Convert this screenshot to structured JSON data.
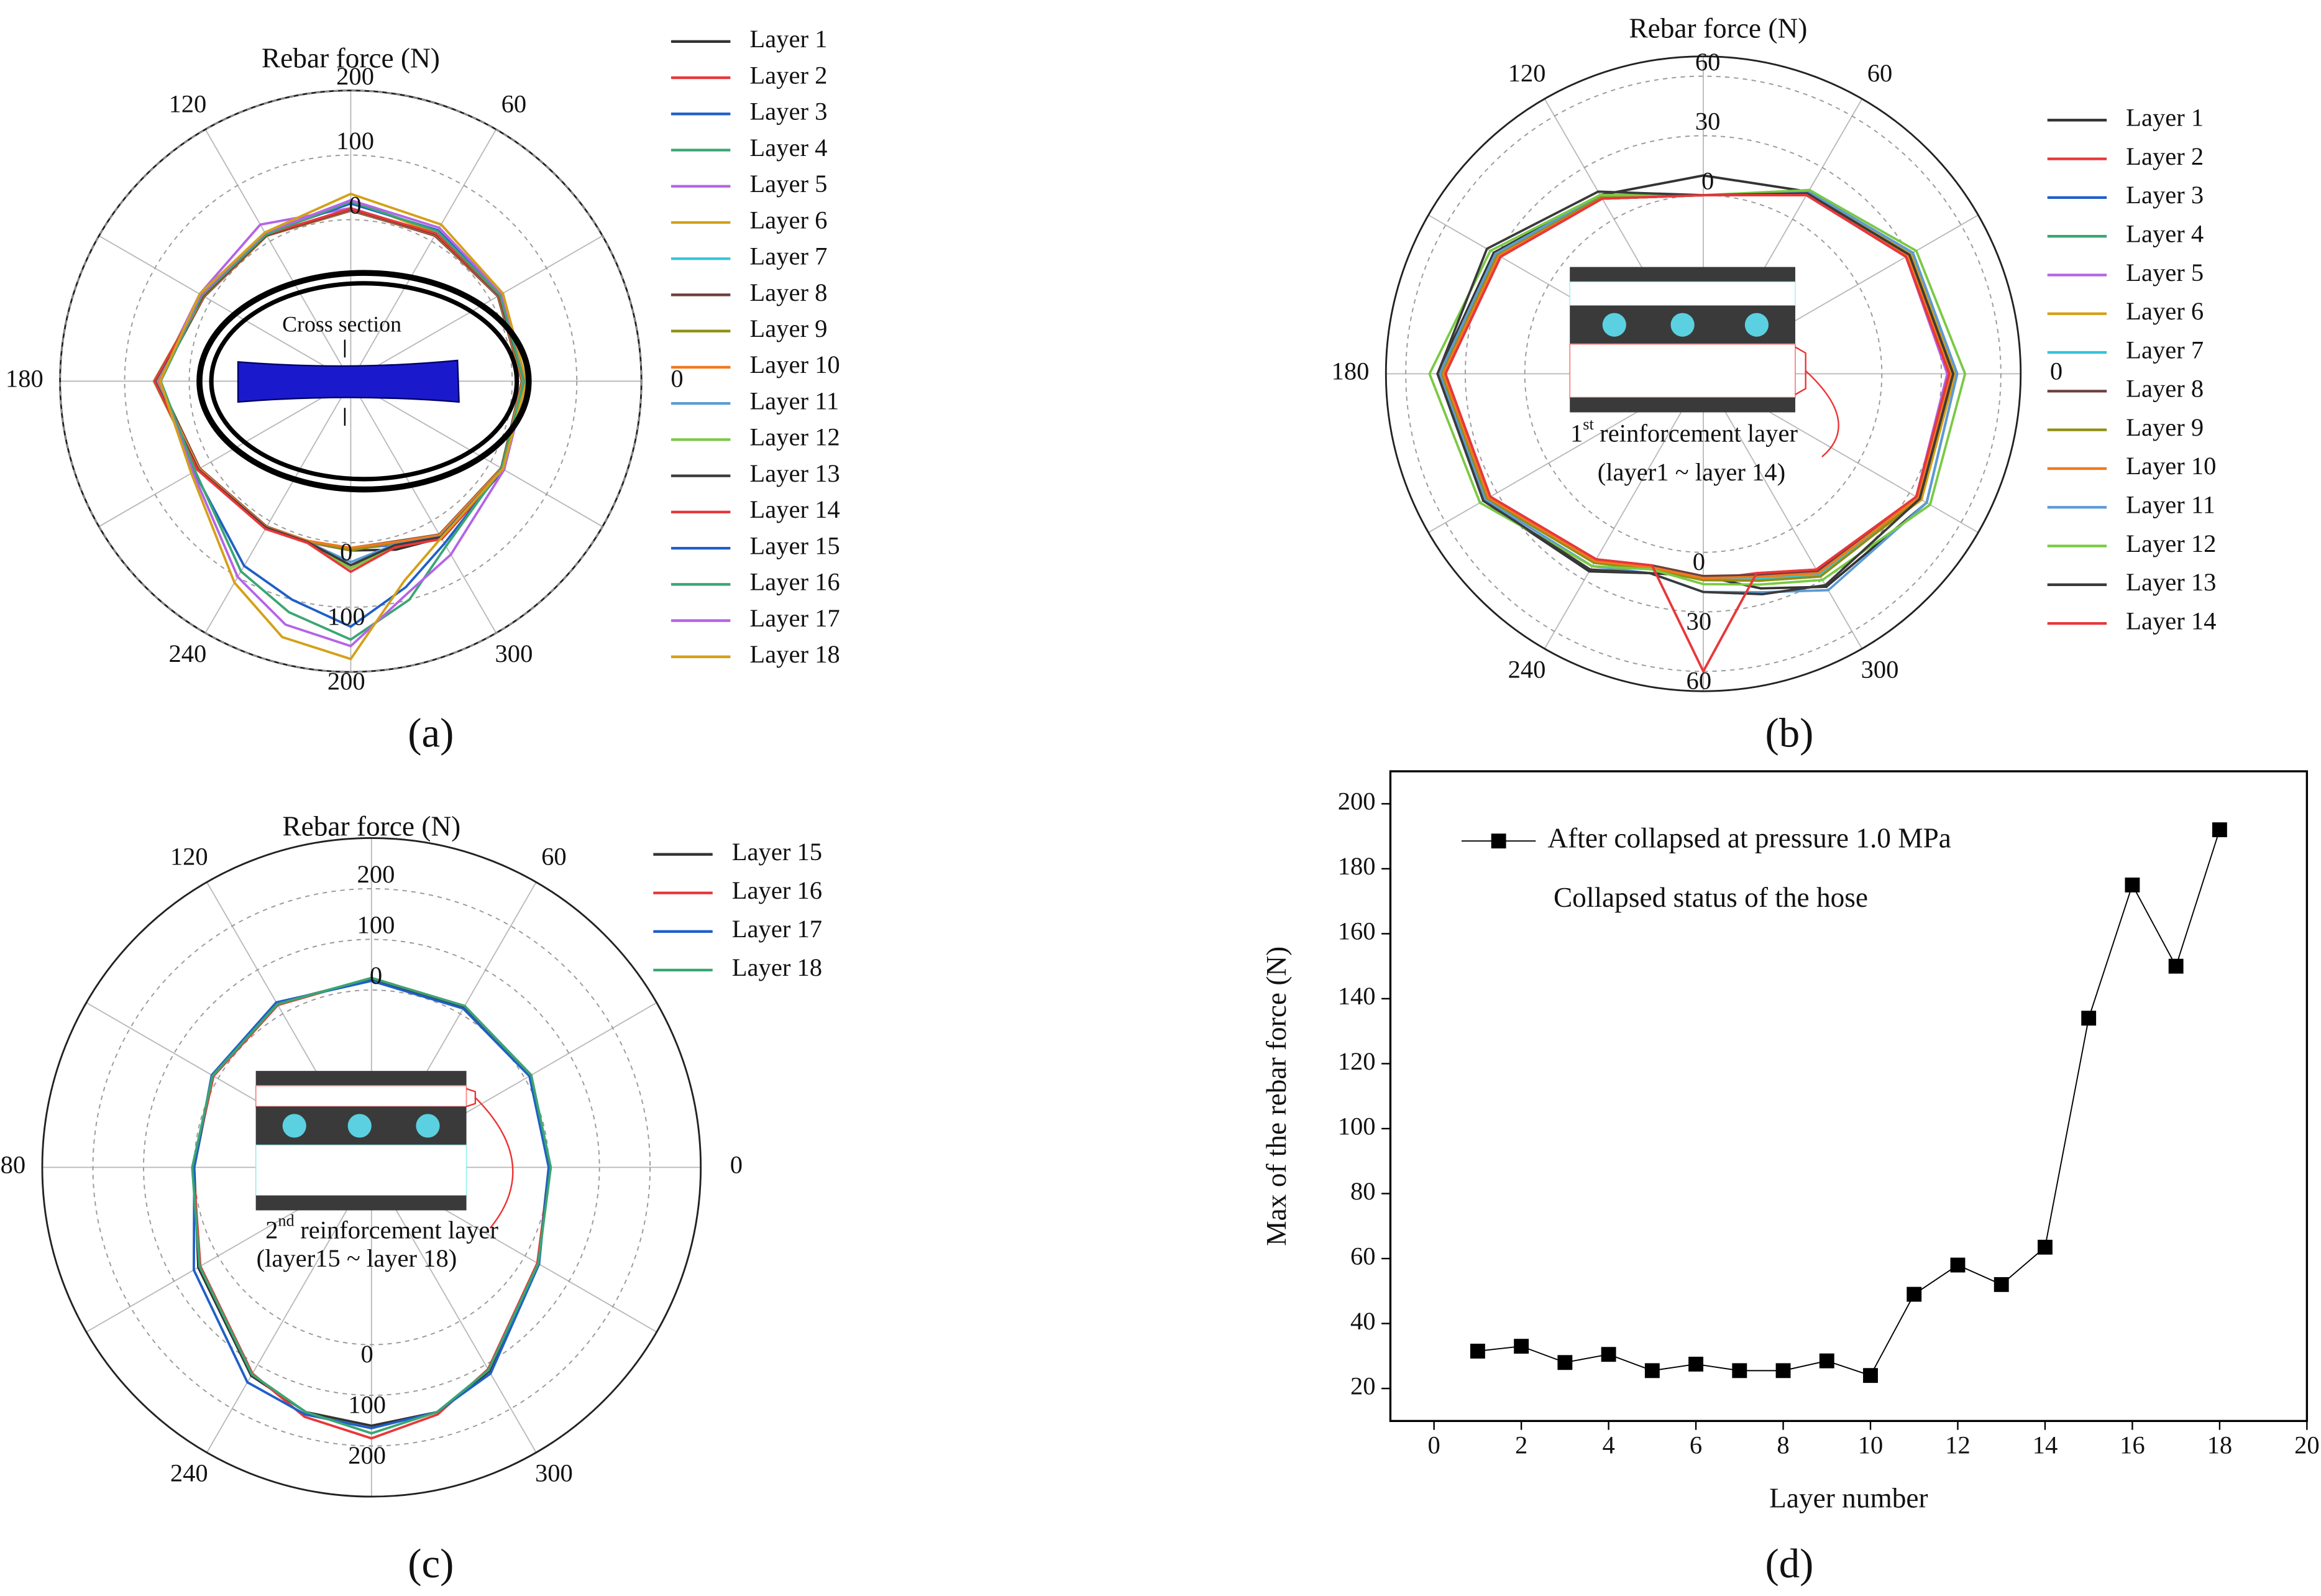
{
  "chart_data": [
    {
      "type": "polar",
      "title": "Rebar force (N)",
      "panel_label": "(a)",
      "annotation": "Cross section",
      "rlim": [
        -250,
        200
      ],
      "rticks": [
        0,
        100,
        200
      ],
      "thetaticks": [
        0,
        60,
        120,
        180,
        240,
        300
      ],
      "theta": [
        0,
        30,
        60,
        90,
        120,
        150,
        180,
        210,
        240,
        255,
        270,
        285,
        300,
        330
      ],
      "series": [
        {
          "name": "Layer 1",
          "color": "#333333",
          "values": [
            18,
            14,
            12,
            14,
            10,
            12,
            50,
            22,
            12,
            8,
            12,
            20,
            30,
            22
          ]
        },
        {
          "name": "Layer 2",
          "color": "#e8373a",
          "values": [
            16,
            15,
            10,
            15,
            12,
            14,
            48,
            20,
            10,
            6,
            40,
            10,
            25,
            20
          ]
        },
        {
          "name": "Layer 3",
          "color": "#1f5fc8",
          "values": [
            20,
            16,
            12,
            16,
            11,
            13,
            52,
            23,
            12,
            7,
            10,
            12,
            28,
            21
          ]
        },
        {
          "name": "Layer 4",
          "color": "#3aa672",
          "values": [
            15,
            13,
            11,
            14,
            10,
            12,
            47,
            21,
            11,
            6,
            9,
            8,
            24,
            19
          ]
        },
        {
          "name": "Layer 5",
          "color": "#b464e6",
          "values": [
            17,
            15,
            13,
            18,
            30,
            20,
            50,
            24,
            13,
            8,
            11,
            10,
            26,
            20
          ]
        },
        {
          "name": "Layer 6",
          "color": "#d4a017",
          "values": [
            19,
            16,
            14,
            30,
            12,
            14,
            52,
            22,
            12,
            7,
            10,
            9,
            27,
            22
          ]
        },
        {
          "name": "Layer 7",
          "color": "#36c5d9",
          "values": [
            16,
            14,
            12,
            15,
            11,
            13,
            49,
            21,
            11,
            6,
            9,
            8,
            25,
            20
          ]
        },
        {
          "name": "Layer 8",
          "color": "#6b3f3f",
          "values": [
            15,
            13,
            11,
            14,
            10,
            12,
            48,
            20,
            10,
            6,
            8,
            7,
            24,
            19
          ]
        },
        {
          "name": "Layer 9",
          "color": "#8f8f14",
          "values": [
            17,
            15,
            12,
            16,
            11,
            14,
            51,
            22,
            12,
            7,
            12,
            9,
            26,
            21
          ]
        },
        {
          "name": "Layer 10",
          "color": "#f07a1e",
          "values": [
            16,
            14,
            12,
            15,
            10,
            13,
            50,
            21,
            11,
            6,
            8,
            8,
            25,
            20
          ]
        },
        {
          "name": "Layer 11",
          "color": "#5b9bd5",
          "values": [
            18,
            15,
            13,
            16,
            12,
            14,
            52,
            23,
            12,
            8,
            30,
            12,
            28,
            22
          ]
        },
        {
          "name": "Layer 12",
          "color": "#7ac943",
          "values": [
            19,
            16,
            13,
            17,
            12,
            15,
            55,
            24,
            13,
            8,
            40,
            14,
            30,
            23
          ]
        },
        {
          "name": "Layer 13",
          "color": "#3a3a3a",
          "values": [
            18,
            15,
            13,
            16,
            11,
            14,
            53,
            23,
            12,
            8,
            35,
            13,
            29,
            22
          ]
        },
        {
          "name": "Layer 14",
          "color": "#e8373a",
          "values": [
            20,
            16,
            14,
            17,
            12,
            15,
            54,
            24,
            14,
            9,
            45,
            16,
            32,
            24
          ]
        },
        {
          "name": "Layer 15",
          "color": "#1f5fc8",
          "values": [
            20,
            18,
            20,
            25,
            14,
            18,
            45,
            30,
            80,
            100,
            130,
            80,
            40,
            22
          ]
        },
        {
          "name": "Layer 16",
          "color": "#3aa672",
          "values": [
            18,
            17,
            18,
            28,
            12,
            16,
            44,
            28,
            90,
            120,
            150,
            100,
            45,
            20
          ]
        },
        {
          "name": "Layer 17",
          "color": "#b464e6",
          "values": [
            22,
            20,
            24,
            30,
            15,
            18,
            46,
            32,
            100,
            140,
            160,
            90,
            60,
            24
          ]
        },
        {
          "name": "Layer 18",
          "color": "#d4a017",
          "values": [
            22,
            22,
            30,
            40,
            16,
            20,
            45,
            35,
            110,
            160,
            180,
            70,
            30,
            22
          ]
        }
      ]
    },
    {
      "type": "polar",
      "title": "Rebar force (N)",
      "panel_label": "(b)",
      "inset_label": {
        "ordinal": "1",
        "suffix": "st",
        "text": "reinforcement layer",
        "range": "(layer1 ~ layer 14)"
      },
      "rlim": [
        -90,
        70
      ],
      "rticks": [
        0,
        30,
        60
      ],
      "thetaticks": [
        0,
        60,
        120,
        180,
        240,
        300
      ],
      "theta": [
        0,
        30,
        60,
        90,
        120,
        150,
        180,
        210,
        240,
        255,
        270,
        285,
        300,
        330
      ],
      "series": [
        {
          "name": "Layer 1",
          "color": "#333333",
          "values": [
            38,
            32,
            16,
            10,
            14,
            32,
            44,
            38,
            25,
            14,
            12,
            22,
            34,
            40
          ]
        },
        {
          "name": "Layer 2",
          "color": "#e8373a",
          "values": [
            34,
            28,
            14,
            0,
            12,
            28,
            40,
            34,
            18,
            10,
            14,
            14,
            24,
            34
          ]
        },
        {
          "name": "Layer 3",
          "color": "#1f5fc8",
          "values": [
            36,
            30,
            15,
            0,
            13,
            30,
            42,
            36,
            20,
            12,
            13,
            18,
            28,
            36
          ]
        },
        {
          "name": "Layer 4",
          "color": "#3aa672",
          "values": [
            35,
            29,
            14,
            0,
            12,
            29,
            41,
            35,
            19,
            11,
            12,
            16,
            26,
            35
          ]
        },
        {
          "name": "Layer 5",
          "color": "#b464e6",
          "values": [
            33,
            28,
            14,
            0,
            13,
            30,
            42,
            34,
            18,
            11,
            13,
            15,
            25,
            34
          ]
        },
        {
          "name": "Layer 6",
          "color": "#d4a017",
          "values": [
            37,
            31,
            15,
            0,
            12,
            31,
            43,
            36,
            20,
            12,
            14,
            17,
            27,
            37
          ]
        },
        {
          "name": "Layer 7",
          "color": "#36c5d9",
          "values": [
            35,
            29,
            14,
            0,
            12,
            29,
            41,
            35,
            19,
            11,
            13,
            17,
            27,
            35
          ]
        },
        {
          "name": "Layer 8",
          "color": "#6b3f3f",
          "values": [
            34,
            28,
            14,
            0,
            12,
            28,
            40,
            34,
            18,
            10,
            12,
            15,
            25,
            34
          ]
        },
        {
          "name": "Layer 9",
          "color": "#8f8f14",
          "values": [
            36,
            30,
            15,
            0,
            13,
            30,
            42,
            36,
            20,
            12,
            14,
            18,
            28,
            36
          ]
        },
        {
          "name": "Layer 10",
          "color": "#f07a1e",
          "values": [
            35,
            29,
            14,
            0,
            12,
            29,
            41,
            35,
            19,
            11,
            13,
            16,
            26,
            35
          ]
        },
        {
          "name": "Layer 11",
          "color": "#5b9bd5",
          "values": [
            38,
            32,
            16,
            0,
            14,
            31,
            43,
            37,
            22,
            14,
            20,
            24,
            36,
            40
          ]
        },
        {
          "name": "Layer 12",
          "color": "#7ac943",
          "values": [
            42,
            34,
            17,
            0,
            14,
            34,
            48,
            40,
            22,
            12,
            16,
            20,
            30,
            42
          ]
        },
        {
          "name": "Layer 13",
          "color": "#3a3a3a",
          "values": [
            36,
            30,
            15,
            0,
            16,
            36,
            44,
            38,
            24,
            14,
            20,
            25,
            33,
            36
          ]
        },
        {
          "name": "Layer 14",
          "color": "#e8373a",
          "values": [
            34,
            28,
            14,
            0,
            12,
            28,
            40,
            34,
            18,
            10,
            60,
            14,
            24,
            34
          ]
        }
      ]
    },
    {
      "type": "polar",
      "title": "Rebar force (N)",
      "panel_label": "(c)",
      "inset_label": {
        "ordinal": "2",
        "suffix": "nd",
        "text": "reinforcement layer",
        "range": "(layer15 ~ layer 18)"
      },
      "rlim": [
        -350,
        300
      ],
      "rticks": [
        0,
        100,
        200
      ],
      "thetaticks": [
        0,
        60,
        120,
        180,
        240,
        300
      ],
      "theta": [
        0,
        30,
        60,
        90,
        120,
        150,
        180,
        210,
        240,
        255,
        270,
        285,
        300,
        330
      ],
      "series": [
        {
          "name": "Layer 15",
          "color": "#333333",
          "values": [
            0,
            12,
            16,
            22,
            24,
            12,
            0,
            45,
            125,
            150,
            160,
            150,
            115,
            30
          ]
        },
        {
          "name": "Layer 16",
          "color": "#e8373a",
          "values": [
            2,
            14,
            18,
            24,
            20,
            10,
            2,
            40,
            120,
            160,
            185,
            155,
            110,
            28
          ]
        },
        {
          "name": "Layer 17",
          "color": "#1f5fc8",
          "values": [
            0,
            10,
            12,
            18,
            26,
            14,
            0,
            55,
            140,
            155,
            165,
            150,
            120,
            32
          ]
        },
        {
          "name": "Layer 18",
          "color": "#3aa672",
          "values": [
            4,
            14,
            18,
            24,
            22,
            12,
            4,
            42,
            122,
            150,
            175,
            150,
            112,
            30
          ]
        }
      ]
    },
    {
      "type": "line",
      "panel_label": "(d)",
      "x_label": "Layer number",
      "y_label": "Max of the rebar force (N)",
      "annotation": "Collapsed status of the hose",
      "xlim": [
        -1,
        20
      ],
      "xticks": [
        0,
        2,
        4,
        6,
        8,
        10,
        12,
        14,
        16,
        18,
        20
      ],
      "ylim": [
        10,
        210
      ],
      "yticks": [
        20,
        40,
        60,
        80,
        100,
        120,
        140,
        160,
        180,
        200
      ],
      "x": [
        1,
        2,
        3,
        4,
        5,
        6,
        7,
        8,
        9,
        10,
        11,
        12,
        13,
        14,
        15,
        16,
        17,
        18
      ],
      "series": [
        {
          "name": "After  collapsed at pressure 1.0 MPa",
          "color": "#000000",
          "values": [
            31.5,
            33,
            28,
            30.5,
            25.5,
            27.5,
            25.5,
            25.5,
            28.5,
            24,
            49,
            58,
            52,
            63.5,
            134,
            175,
            150,
            192
          ]
        }
      ]
    }
  ]
}
